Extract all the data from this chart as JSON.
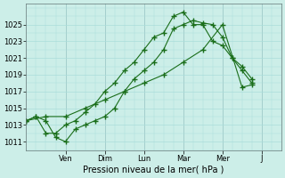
{
  "background_color": "#cceee8",
  "grid_color": "#aaddda",
  "line_color": "#1a6e1a",
  "xlabel": "Pression niveau de la mer( hPa )",
  "ylim": [
    1010.0,
    1027.5
  ],
  "yticks": [
    1011,
    1013,
    1015,
    1017,
    1019,
    1021,
    1023,
    1025
  ],
  "day_labels": [
    "Ven",
    "Dim",
    "Lun",
    "Mar",
    "Mer",
    "J"
  ],
  "day_positions": [
    2.0,
    4.0,
    6.0,
    8.0,
    10.0,
    12.0
  ],
  "xlim": [
    0,
    13
  ],
  "series1_x": [
    0.0,
    0.5,
    1.0,
    1.5,
    2.0,
    2.5,
    3.0,
    3.5,
    4.0,
    4.5,
    5.0,
    5.5,
    6.0,
    6.5,
    7.0,
    7.5,
    8.0,
    8.5,
    9.0,
    9.5,
    10.0,
    10.5,
    11.0,
    11.5
  ],
  "series1_y": [
    1013.5,
    1014.0,
    1013.5,
    1011.5,
    1011.0,
    1012.5,
    1013.0,
    1013.5,
    1014.0,
    1015.0,
    1017.0,
    1018.5,
    1019.5,
    1020.5,
    1022.0,
    1024.5,
    1025.0,
    1025.5,
    1025.2,
    1025.0,
    1023.5,
    1021.0,
    1020.0,
    1018.5
  ],
  "series2_x": [
    0.0,
    0.5,
    1.0,
    1.5,
    2.0,
    2.5,
    3.0,
    3.5,
    4.0,
    4.5,
    5.0,
    5.5,
    6.0,
    6.5,
    7.0,
    7.5,
    8.0,
    8.5,
    9.0,
    9.5,
    10.0,
    10.5,
    11.0,
    11.5
  ],
  "series2_y": [
    1013.5,
    1014.0,
    1012.0,
    1012.0,
    1013.0,
    1013.5,
    1014.5,
    1015.5,
    1017.0,
    1018.0,
    1019.5,
    1020.5,
    1022.0,
    1023.5,
    1024.0,
    1026.0,
    1026.5,
    1025.0,
    1025.0,
    1023.0,
    1022.5,
    1021.0,
    1019.5,
    1018.0
  ],
  "series3_x": [
    0.0,
    1.0,
    2.0,
    3.0,
    4.0,
    5.0,
    6.0,
    7.0,
    8.0,
    9.0,
    10.0,
    11.0,
    11.5
  ],
  "series3_y": [
    1013.5,
    1014.0,
    1014.0,
    1015.0,
    1016.0,
    1017.0,
    1018.0,
    1019.0,
    1020.5,
    1022.0,
    1025.0,
    1017.5,
    1017.8
  ]
}
